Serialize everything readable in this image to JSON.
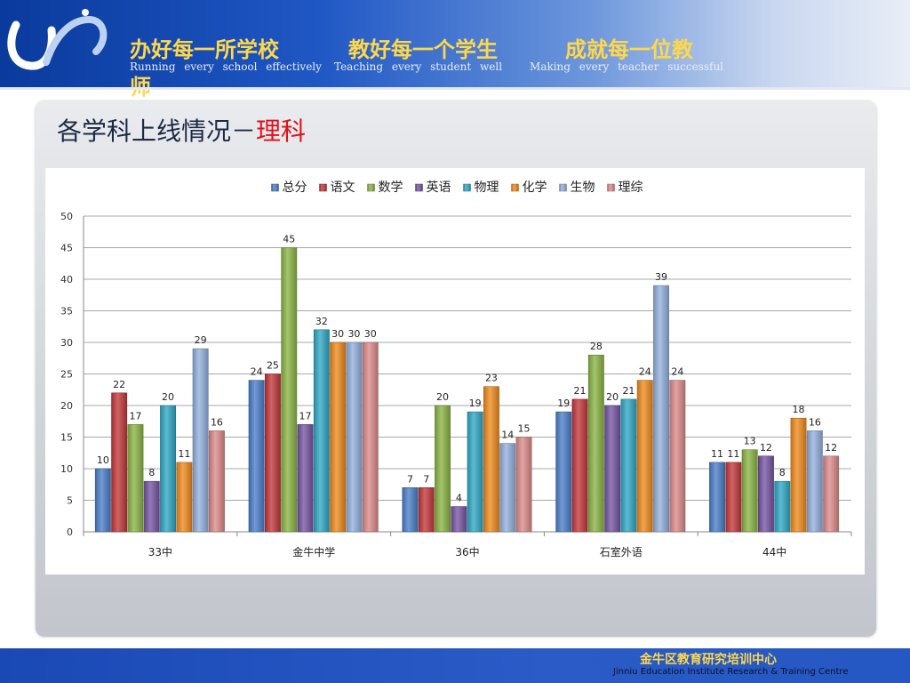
{
  "header": {
    "motto_cn": [
      "办好每一所学校",
      "教好每一个学生",
      "成就每一位教"
    ],
    "motto_wrap": "师",
    "motto_en": [
      "Running every school effectively",
      "Teaching every student well",
      "Making every teacher successful"
    ]
  },
  "slide": {
    "title_main": "各学科上线情况－",
    "title_highlight": "理科"
  },
  "footer": {
    "org_cn": "金牛区教育研究培训中心",
    "org_en": "Jinniu Education Institute Research & Training Centre"
  },
  "chart_data": {
    "type": "bar",
    "categories": [
      "33中",
      "金牛中学",
      "36中",
      "石室外语",
      "44中"
    ],
    "series": [
      {
        "name": "总分",
        "color": "#4a7fc9",
        "values": [
          10,
          24,
          7,
          19,
          11
        ]
      },
      {
        "name": "语文",
        "color": "#c3373a",
        "values": [
          22,
          25,
          7,
          21,
          11
        ]
      },
      {
        "name": "数学",
        "color": "#8ab445",
        "values": [
          17,
          45,
          20,
          28,
          13
        ]
      },
      {
        "name": "英语",
        "color": "#7654a3",
        "values": [
          8,
          17,
          4,
          20,
          12
        ]
      },
      {
        "name": "物理",
        "color": "#2fa8c4",
        "values": [
          20,
          32,
          19,
          21,
          8
        ]
      },
      {
        "name": "化学",
        "color": "#f08a1c",
        "values": [
          11,
          30,
          23,
          24,
          18
        ]
      },
      {
        "name": "生物",
        "color": "#93b0de",
        "values": [
          29,
          30,
          14,
          39,
          16
        ]
      },
      {
        "name": "理综",
        "color": "#dc8a8a",
        "values": [
          16,
          30,
          15,
          24,
          12
        ]
      }
    ],
    "ylim": [
      0,
      50
    ],
    "yticks": [
      0,
      5,
      10,
      15,
      20,
      25,
      30,
      35,
      40,
      45,
      50
    ],
    "grid": true,
    "legend": "top"
  }
}
